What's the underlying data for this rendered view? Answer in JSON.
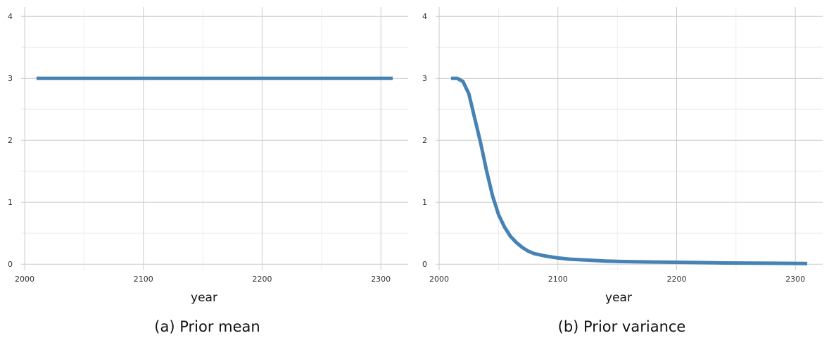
{
  "figure": {
    "caption_a": "(a) Prior mean",
    "caption_b": "(b) Prior variance"
  },
  "chart_data": [
    {
      "type": "line",
      "title": "",
      "xlabel": "year",
      "ylabel": "",
      "xlim": [
        1997,
        2323
      ],
      "ylim": [
        -0.1,
        4.15
      ],
      "xticks": [
        2000,
        2100,
        2200,
        2300
      ],
      "yticks": [
        0,
        1,
        2,
        3,
        4
      ],
      "grid": true,
      "line_color": "#4682b4",
      "series": [
        {
          "x": [
            2010,
            2310
          ],
          "y": [
            3,
            3
          ]
        }
      ]
    },
    {
      "type": "line",
      "title": "",
      "xlabel": "year",
      "ylabel": "",
      "xlim": [
        1997,
        2323
      ],
      "ylim": [
        -0.1,
        4.15
      ],
      "xticks": [
        2000,
        2100,
        2200,
        2300
      ],
      "yticks": [
        0,
        1,
        2,
        3,
        4
      ],
      "grid": true,
      "line_color": "#4682b4",
      "series": [
        {
          "x": [
            2010,
            2015,
            2020,
            2025,
            2030,
            2035,
            2040,
            2045,
            2050,
            2055,
            2060,
            2065,
            2070,
            2075,
            2080,
            2090,
            2100,
            2110,
            2120,
            2140,
            2160,
            2180,
            2200,
            2240,
            2280,
            2310
          ],
          "y": [
            3.0,
            3.0,
            2.95,
            2.75,
            2.35,
            1.95,
            1.5,
            1.1,
            0.8,
            0.6,
            0.45,
            0.35,
            0.27,
            0.21,
            0.17,
            0.13,
            0.1,
            0.08,
            0.07,
            0.05,
            0.04,
            0.035,
            0.03,
            0.02,
            0.015,
            0.01
          ]
        }
      ]
    }
  ]
}
